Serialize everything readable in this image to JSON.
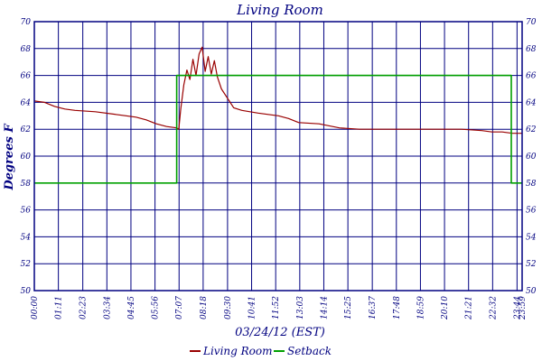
{
  "chart_data": {
    "type": "line",
    "title": "Living Room",
    "xlabel": "03/24/12 (EST)",
    "ylabel": "Degrees F",
    "ylim": [
      50,
      70
    ],
    "yticks": [
      50,
      52,
      54,
      56,
      58,
      60,
      62,
      64,
      66,
      68,
      70
    ],
    "x_tick_labels": [
      "00:00",
      "01:11",
      "02:23",
      "03:34",
      "04:45",
      "05:56",
      "07:07",
      "08:18",
      "09:30",
      "10:41",
      "11:52",
      "13:03",
      "14:14",
      "15:25",
      "16:37",
      "17:48",
      "18:59",
      "20:10",
      "21:21",
      "22:32",
      "23:44",
      "23:59"
    ],
    "x_tick_hours": [
      0,
      1.183,
      2.383,
      3.567,
      4.75,
      5.933,
      7.117,
      8.3,
      9.5,
      10.683,
      11.867,
      13.05,
      14.233,
      15.417,
      16.617,
      17.8,
      18.983,
      20.167,
      21.35,
      22.533,
      23.733,
      23.983
    ],
    "xlim": [
      0,
      23.983
    ],
    "grid": true,
    "legend_position": "bottom-center",
    "series": [
      {
        "name": "Living Room",
        "color": "#990000",
        "x": [
          0,
          0.5,
          1.0,
          1.5,
          2.0,
          3.0,
          4.0,
          5.0,
          5.5,
          6.0,
          6.5,
          7.0,
          7.1,
          7.2,
          7.35,
          7.5,
          7.65,
          7.8,
          7.95,
          8.1,
          8.25,
          8.4,
          8.55,
          8.7,
          8.85,
          9.0,
          9.2,
          9.5,
          9.8,
          10.2,
          11.0,
          12.0,
          12.5,
          13.0,
          14.0,
          15.0,
          16.0,
          17.0,
          18.0,
          19.0,
          20.0,
          21.0,
          22.0,
          22.5,
          23.0,
          23.5,
          23.983
        ],
        "y": [
          64.1,
          64.0,
          63.7,
          63.5,
          63.4,
          63.3,
          63.1,
          62.9,
          62.7,
          62.4,
          62.2,
          62.1,
          62.0,
          63.5,
          65.3,
          66.4,
          65.7,
          67.2,
          66.0,
          67.6,
          68.1,
          66.3,
          67.4,
          66.1,
          67.1,
          65.9,
          65.0,
          64.3,
          63.6,
          63.4,
          63.2,
          63.0,
          62.8,
          62.5,
          62.4,
          62.1,
          62.0,
          62.0,
          62.0,
          62.0,
          62.0,
          62.0,
          61.9,
          61.8,
          61.8,
          61.7,
          61.7
        ]
      },
      {
        "name": "Setback",
        "color": "#00a000",
        "x": [
          0,
          7.0,
          7.0,
          23.45,
          23.45,
          23.983
        ],
        "y": [
          58,
          58,
          66,
          66,
          58,
          58
        ]
      }
    ]
  }
}
